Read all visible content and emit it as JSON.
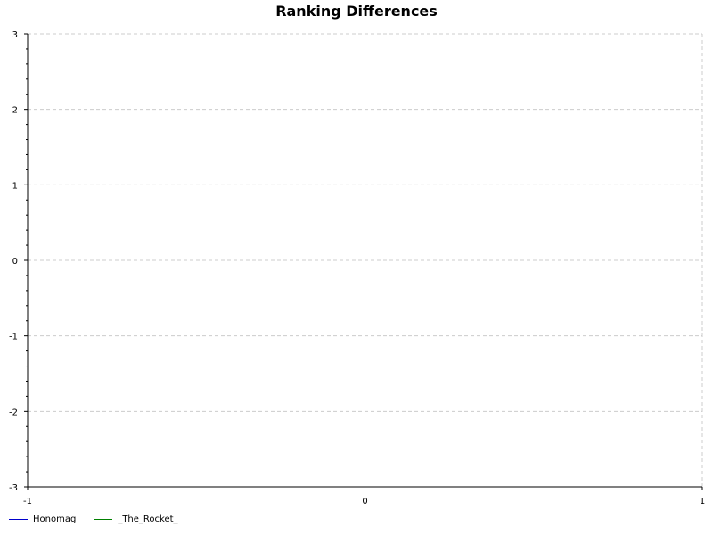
{
  "chart_data": {
    "type": "line",
    "title": "Ranking Differences",
    "xlabel": "",
    "ylabel": "",
    "xlim": [
      -1,
      1
    ],
    "ylim": [
      -3,
      3
    ],
    "x_ticks": [
      "-1",
      "0",
      "1"
    ],
    "y_ticks": [
      "-3",
      "-2",
      "-1",
      "0",
      "1",
      "2",
      "3"
    ],
    "grid": true,
    "legend_position": "bottom-left",
    "series": [
      {
        "name": "Honomag",
        "color": "#0000cc",
        "x": [],
        "y": []
      },
      {
        "name": "_The_Rocket_",
        "color": "#008000",
        "x": [],
        "y": []
      }
    ]
  }
}
